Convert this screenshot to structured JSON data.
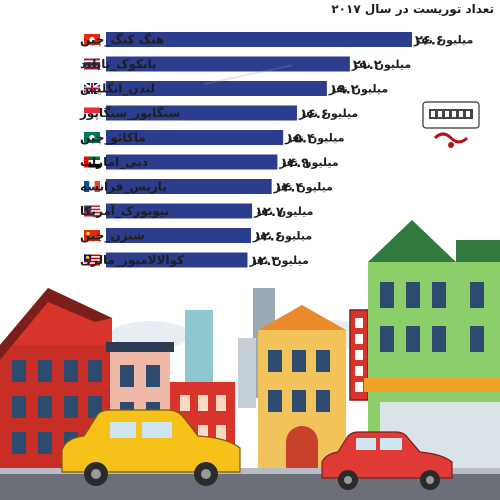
{
  "chart_data": {
    "type": "bar",
    "orientation": "horizontal",
    "title": "تعداد توریست در سال ۲۰۱۷",
    "unit": "میلیون نفر",
    "categories": [
      "هنگ کنگ_چین",
      "بانکوک_تایلند",
      "لندن_انگلیس",
      "سنگاپور_سنگاپور",
      "ماکائو_چین",
      "دبی_امارات",
      "پاریس_فرانسه",
      "نیویورک_آمریکا",
      "شنژن_چین",
      "کوالالامپور_مالزی"
    ],
    "values": [
      26.6,
      21.2,
      19.2,
      16.6,
      15.4,
      14.9,
      14.4,
      12.7,
      12.6,
      12.3
    ],
    "value_labels": [
      "۲۶.۶",
      "۲۱.۲",
      "۱۹.۲",
      "۱۶.۶",
      "۱۵.۴",
      "۱۴.۹",
      "۱۴.۴",
      "۱۲.۷",
      "۱۲.۶",
      "۱۲.۳"
    ],
    "flags": [
      "hong-kong",
      "thailand",
      "uk",
      "singapore",
      "macau",
      "uae",
      "france",
      "usa",
      "china",
      "malaysia"
    ],
    "bar_color": "#2b3d8c",
    "xlim": [
      0,
      26.6
    ],
    "legend": "none",
    "grid": false
  },
  "colors": {
    "hong-kong": [
      "#de2910",
      "#ffffff"
    ],
    "thailand": [
      "#a51931",
      "#f4f5f8",
      "#2d2a4a"
    ],
    "uk": [
      "#012169",
      "#ffffff",
      "#c8102e"
    ],
    "singapore": [
      "#ed2939",
      "#ffffff"
    ],
    "macau": [
      "#00785e",
      "#ffffff"
    ],
    "uae": [
      "#00732f",
      "#ffffff",
      "#000000",
      "#ff0000"
    ],
    "france": [
      "#0055a4",
      "#ffffff",
      "#ef4135"
    ],
    "usa": [
      "#b22234",
      "#ffffff",
      "#3c3b6e"
    ],
    "china": [
      "#de2910",
      "#ffde00"
    ],
    "malaysia": [
      "#cc0001",
      "#ffffff",
      "#010066",
      "#ffcc00"
    ]
  }
}
